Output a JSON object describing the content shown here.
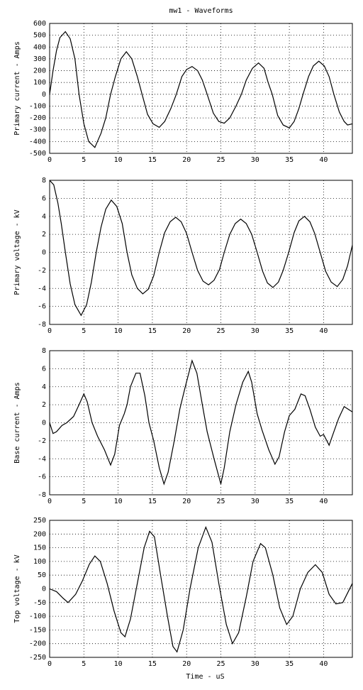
{
  "chart_data": [
    {
      "type": "line",
      "title": "mw1 - Waveforms",
      "ylabel": "Primary current - Amps",
      "color": "#000000",
      "grid": true,
      "xlim": [
        0,
        44.2
      ],
      "xticks": [
        0,
        5,
        10,
        15,
        20,
        25,
        30,
        35,
        40
      ],
      "ylim": [
        -500,
        600
      ],
      "yticks": [
        -500,
        -400,
        -300,
        -200,
        -100,
        0,
        100,
        200,
        300,
        400,
        500,
        600
      ],
      "x": [
        0,
        0.5,
        1,
        1.5,
        2.3,
        3,
        3.7,
        4.3,
        5,
        5.7,
        6.6,
        7.5,
        8.2,
        8.9,
        9.6,
        10.4,
        11.2,
        12,
        12.8,
        13.5,
        14.3,
        15.1,
        16,
        16.8,
        17.7,
        18.5,
        19.3,
        20,
        20.8,
        21.6,
        22.3,
        23,
        23.9,
        24.7,
        25.5,
        26.3,
        27.2,
        28,
        28.7,
        29.6,
        30.5,
        31.3,
        31.9,
        32.5,
        33.3,
        34.1,
        35,
        35.7,
        36.4,
        37,
        37.8,
        38.5,
        39.3,
        40.1,
        40.8,
        41.5,
        42.3,
        43,
        43.5,
        44.2
      ],
      "values": [
        0,
        200,
        370,
        480,
        530,
        470,
        300,
        0,
        -250,
        -400,
        -450,
        -330,
        -200,
        0,
        150,
        300,
        360,
        300,
        150,
        0,
        -170,
        -250,
        -280,
        -230,
        -120,
        0,
        150,
        210,
        235,
        200,
        120,
        0,
        -160,
        -230,
        -245,
        -200,
        -100,
        0,
        120,
        220,
        265,
        220,
        100,
        0,
        -180,
        -260,
        -285,
        -230,
        -120,
        0,
        150,
        240,
        280,
        240,
        150,
        0,
        -150,
        -230,
        -260,
        -250
      ]
    },
    {
      "type": "line",
      "ylabel": "Primary voltage - kV",
      "color": "#000000",
      "grid": true,
      "xlim": [
        0,
        44.2
      ],
      "xticks": [
        0,
        5,
        10,
        15,
        20,
        25,
        30,
        35,
        40
      ],
      "ylim": [
        -8,
        8
      ],
      "yticks": [
        -8,
        -6,
        -4,
        -2,
        0,
        2,
        4,
        6,
        8
      ],
      "x": [
        0,
        0.6,
        1.2,
        1.7,
        2.3,
        3,
        3.7,
        4.6,
        5.4,
        6.1,
        6.8,
        7.5,
        8.2,
        9,
        9.8,
        10.6,
        11.3,
        12,
        12.8,
        13.6,
        14.4,
        15.2,
        16,
        16.8,
        17.6,
        18.4,
        19.2,
        20,
        20.8,
        21.6,
        22.4,
        23.2,
        24,
        24.8,
        25.5,
        26.3,
        27.1,
        27.9,
        28.7,
        29.5,
        30.3,
        31.1,
        31.8,
        32.6,
        33.4,
        34.1,
        34.9,
        35.7,
        36.4,
        37.2,
        38,
        38.7,
        39.5,
        40.3,
        41.1,
        42,
        42.8,
        43.5,
        44.2
      ],
      "values": [
        8,
        7.5,
        5.5,
        3.2,
        0,
        -3.5,
        -5.8,
        -7,
        -5.8,
        -3.3,
        0,
        2.8,
        4.8,
        5.8,
        5.1,
        3.2,
        0,
        -2.5,
        -4,
        -4.6,
        -4.1,
        -2.6,
        0,
        2.2,
        3.4,
        3.9,
        3.4,
        2.1,
        0,
        -2,
        -3.2,
        -3.6,
        -3.1,
        -1.9,
        0,
        2,
        3.2,
        3.7,
        3.2,
        2,
        0,
        -2.1,
        -3.4,
        -3.9,
        -3.3,
        -2,
        0,
        2.2,
        3.5,
        4,
        3.4,
        2.1,
        0,
        -2.1,
        -3.3,
        -3.8,
        -3,
        -1.5,
        0.8
      ]
    },
    {
      "type": "line",
      "ylabel": "Base current - Amps",
      "color": "#000000",
      "grid": true,
      "xlim": [
        0,
        44.2
      ],
      "xticks": [
        0,
        5,
        10,
        15,
        20,
        25,
        30,
        35,
        40
      ],
      "ylim": [
        -8,
        8
      ],
      "yticks": [
        -8,
        -6,
        -4,
        -2,
        0,
        2,
        4,
        6,
        8
      ],
      "x": [
        0,
        0.5,
        1,
        1.8,
        2.5,
        3.5,
        4.3,
        5,
        5.5,
        6.2,
        7,
        8,
        8.9,
        9.5,
        10.2,
        10.9,
        11.3,
        11.8,
        12.6,
        13.2,
        13.9,
        14.5,
        15.2,
        16,
        16.7,
        17.3,
        18.2,
        19,
        19.8,
        20.8,
        21.5,
        22.3,
        23,
        24,
        25,
        25.5,
        26.3,
        27.2,
        28.2,
        29,
        29.5,
        30.3,
        31,
        32,
        32.9,
        33.5,
        34.3,
        35,
        35.8,
        36.7,
        37.3,
        38,
        38.8,
        39.5,
        40,
        40.8,
        41.5,
        42.2,
        43,
        44.2
      ],
      "values": [
        0,
        -1.2,
        -1,
        -0.3,
        0,
        0.7,
        2,
        3.2,
        2.3,
        0,
        -1.5,
        -3,
        -4.7,
        -3.5,
        -0.3,
        1,
        2,
        4,
        5.5,
        5.5,
        3,
        0,
        -2,
        -5,
        -6.8,
        -5.5,
        -2,
        1.5,
        4,
        6.9,
        5.5,
        2,
        -1,
        -4,
        -6.8,
        -5,
        -1,
        2,
        4.5,
        5.7,
        4.5,
        1,
        -0.8,
        -3,
        -4.6,
        -3.8,
        -1,
        0.8,
        1.5,
        3.2,
        3,
        1.5,
        -0.5,
        -1.5,
        -1.3,
        -2.5,
        -1,
        0.5,
        1.8,
        1.2
      ]
    },
    {
      "type": "line",
      "ylabel": "Top voltage - kV",
      "xlabel": "Time - uS",
      "color": "#000000",
      "grid": true,
      "xlim": [
        0,
        44.2
      ],
      "xticks": [
        0,
        5,
        10,
        15,
        20,
        25,
        30,
        35,
        40
      ],
      "ylim": [
        -250,
        250
      ],
      "yticks": [
        -250,
        -200,
        -150,
        -100,
        -50,
        0,
        50,
        100,
        150,
        200,
        250
      ],
      "x": [
        0,
        1,
        2,
        2.7,
        3.8,
        4.8,
        5.8,
        6.6,
        7.4,
        8.4,
        9.4,
        10.4,
        11,
        11.8,
        12.8,
        13.8,
        14.6,
        15.3,
        16.2,
        17.2,
        18,
        18.6,
        19.5,
        20.5,
        21.7,
        22.8,
        23.7,
        24.7,
        25.8,
        26.7,
        27.6,
        28.7,
        29.7,
        30.8,
        31.5,
        32.6,
        33.6,
        34.6,
        35.5,
        36.6,
        37.7,
        38.8,
        39.8,
        40.8,
        41.8,
        42.8,
        44.2
      ],
      "values": [
        0,
        -10,
        -35,
        -50,
        -20,
        30,
        90,
        120,
        100,
        20,
        -80,
        -160,
        -175,
        -110,
        20,
        150,
        210,
        190,
        50,
        -100,
        -210,
        -230,
        -150,
        0,
        150,
        225,
        170,
        20,
        -130,
        -200,
        -160,
        -30,
        100,
        165,
        150,
        50,
        -70,
        -130,
        -100,
        0,
        60,
        88,
        60,
        -20,
        -55,
        -50,
        20
      ]
    }
  ]
}
